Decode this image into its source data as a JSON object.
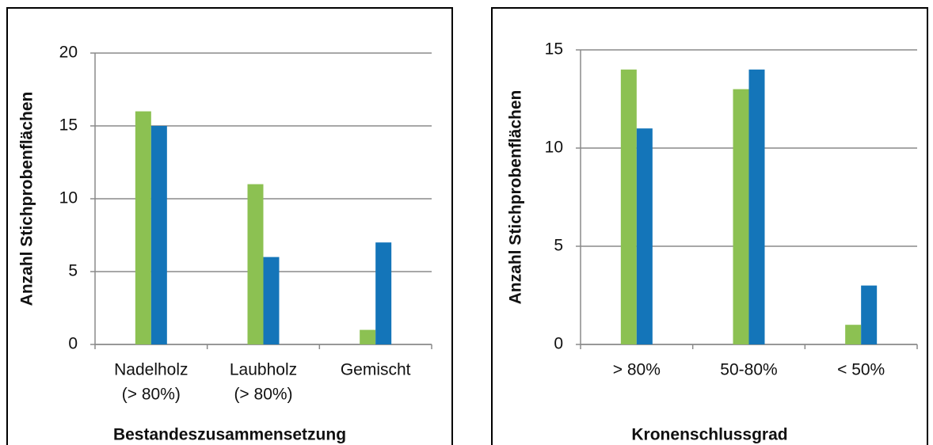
{
  "chart_data": [
    {
      "type": "bar",
      "categories": [
        [
          "Nadelholz",
          "(> 80%)"
        ],
        [
          "Laubholz",
          "(> 80%)"
        ],
        [
          "Gemischt"
        ]
      ],
      "series": [
        {
          "color": "#8cc152",
          "values": [
            16,
            11,
            1
          ]
        },
        {
          "color": "#1475b9",
          "values": [
            15,
            6,
            7
          ]
        }
      ],
      "ylabel": "Anzahl Stichprobenflächen",
      "xlabel": "Bestandeszusammensetzung",
      "ylim": [
        0,
        20
      ],
      "yticks": [
        0,
        5,
        10,
        15,
        20
      ],
      "grid": true
    },
    {
      "type": "bar",
      "categories": [
        [
          "> 80%"
        ],
        [
          "50-80%"
        ],
        [
          "< 50%"
        ]
      ],
      "series": [
        {
          "color": "#8cc152",
          "values": [
            14,
            13,
            1
          ]
        },
        {
          "color": "#1475b9",
          "values": [
            11,
            14,
            3
          ]
        }
      ],
      "ylabel": "Anzahl Stichprobenflächen",
      "xlabel": "Kronenschlussgrad",
      "ylim": [
        0,
        15
      ],
      "yticks": [
        0,
        5,
        10,
        15
      ],
      "grid": true
    }
  ]
}
